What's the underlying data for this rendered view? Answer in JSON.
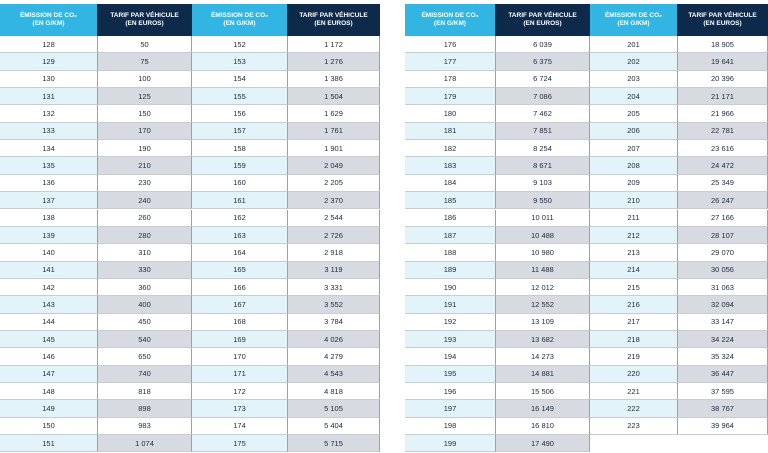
{
  "tables": [
    {
      "headers": [
        [
          "ÉMISSION DE CO₂",
          "(EN G/KM)"
        ],
        [
          "TARIF PAR VÉHICULE",
          "(EN EUROS)"
        ],
        [
          "ÉMISSION DE CO₂",
          "(EN G/KM)"
        ],
        [
          "TARIF PAR VÉHICULE",
          "(EN EUROS)"
        ]
      ],
      "rows": [
        [
          "128",
          "50",
          "152",
          "1 172"
        ],
        [
          "129",
          "75",
          "153",
          "1 276"
        ],
        [
          "130",
          "100",
          "154",
          "1 386"
        ],
        [
          "131",
          "125",
          "155",
          "1 504"
        ],
        [
          "132",
          "150",
          "156",
          "1 629"
        ],
        [
          "133",
          "170",
          "157",
          "1 761"
        ],
        [
          "134",
          "190",
          "158",
          "1 901"
        ],
        [
          "135",
          "210",
          "159",
          "2 049"
        ],
        [
          "136",
          "230",
          "160",
          "2 205"
        ],
        [
          "137",
          "240",
          "161",
          "2 370"
        ],
        [
          "138",
          "260",
          "162",
          "2 544"
        ],
        [
          "139",
          "280",
          "163",
          "2 726"
        ],
        [
          "140",
          "310",
          "164",
          "2 918"
        ],
        [
          "141",
          "330",
          "165",
          "3 119"
        ],
        [
          "142",
          "360",
          "166",
          "3 331"
        ],
        [
          "143",
          "400",
          "167",
          "3 552"
        ],
        [
          "144",
          "450",
          "168",
          "3 784"
        ],
        [
          "145",
          "540",
          "169",
          "4 026"
        ],
        [
          "146",
          "650",
          "170",
          "4 279"
        ],
        [
          "147",
          "740",
          "171",
          "4 543"
        ],
        [
          "148",
          "818",
          "172",
          "4 818"
        ],
        [
          "149",
          "898",
          "173",
          "5 105"
        ],
        [
          "150",
          "983",
          "174",
          "5 404"
        ],
        [
          "151",
          "1 074",
          "175",
          "5 715"
        ]
      ]
    },
    {
      "headers": [
        [
          "ÉMISSION DE CO₂",
          "(EN G/KM)"
        ],
        [
          "TARIF PAR VÉHICULE",
          "(EN EUROS)"
        ],
        [
          "ÉMISSION DE CO₂",
          "(EN G/KM)"
        ],
        [
          "TARIF PAR VÉHICULE",
          "(EN EUROS)"
        ]
      ],
      "rows": [
        [
          "176",
          "6 039",
          "201",
          "18 905"
        ],
        [
          "177",
          "6 375",
          "202",
          "19 641"
        ],
        [
          "178",
          "6 724",
          "203",
          "20 396"
        ],
        [
          "179",
          "7 086",
          "204",
          "21 171"
        ],
        [
          "180",
          "7 462",
          "205",
          "21 966"
        ],
        [
          "181",
          "7 851",
          "206",
          "22 781"
        ],
        [
          "182",
          "8 254",
          "207",
          "23 616"
        ],
        [
          "183",
          "8 671",
          "208",
          "24 472"
        ],
        [
          "184",
          "9 103",
          "209",
          "25 349"
        ],
        [
          "185",
          "9 550",
          "210",
          "26 247"
        ],
        [
          "186",
          "10 011",
          "211",
          "27 166"
        ],
        [
          "187",
          "10 488",
          "212",
          "28 107"
        ],
        [
          "188",
          "10 980",
          "213",
          "29 070"
        ],
        [
          "189",
          "11 488",
          "214",
          "30 056"
        ],
        [
          "190",
          "12 012",
          "215",
          "31 063"
        ],
        [
          "191",
          "12 552",
          "216",
          "32 094"
        ],
        [
          "192",
          "13 109",
          "217",
          "33 147"
        ],
        [
          "193",
          "13 682",
          "218",
          "34 224"
        ],
        [
          "194",
          "14 273",
          "219",
          "35 324"
        ],
        [
          "195",
          "14 881",
          "220",
          "36 447"
        ],
        [
          "196",
          "15 506",
          "221",
          "37 595"
        ],
        [
          "197",
          "16 149",
          "222",
          "38 767"
        ],
        [
          "198",
          "16 810",
          "223",
          "39 964"
        ],
        [
          "199",
          "17 490",
          null,
          null
        ]
      ]
    }
  ]
}
